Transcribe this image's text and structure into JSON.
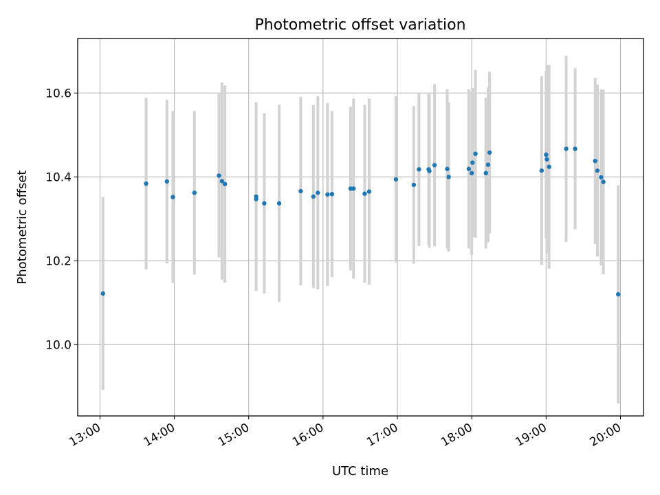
{
  "chart_data": {
    "type": "scatter",
    "title": "Photometric offset variation",
    "xlabel": "UTC time",
    "ylabel": "Photometric offset",
    "x_unit": "hours UTC",
    "xlim": [
      12.7,
      20.31
    ],
    "ylim": [
      9.83,
      10.73
    ],
    "xticks": [
      13,
      14,
      15,
      16,
      17,
      18,
      19,
      20
    ],
    "xtick_labels": [
      "13:00",
      "14:00",
      "15:00",
      "16:00",
      "17:00",
      "18:00",
      "19:00",
      "20:00"
    ],
    "yticks": [
      10.0,
      10.2,
      10.4,
      10.6
    ],
    "ytick_labels": [
      "10.0",
      "10.2",
      "10.4",
      "10.6"
    ],
    "grid": true,
    "marker_color": "#1f77b4",
    "errorbar_color": "#d3d3d3",
    "series": [
      {
        "name": "offset",
        "x": [
          13.04,
          13.62,
          13.9,
          13.98,
          14.27,
          14.6,
          14.64,
          14.68,
          15.1,
          15.1,
          15.21,
          15.41,
          15.7,
          15.87,
          15.93,
          16.06,
          16.12,
          16.37,
          16.41,
          16.56,
          16.62,
          16.98,
          17.22,
          17.29,
          17.42,
          17.43,
          17.5,
          17.67,
          17.69,
          17.96,
          18.0,
          18.01,
          18.05,
          18.19,
          18.22,
          18.24,
          18.94,
          19.0,
          19.01,
          19.04,
          19.27,
          19.39,
          19.66,
          19.69,
          19.74,
          19.77,
          19.97
        ],
        "y": [
          10.122,
          10.384,
          10.389,
          10.352,
          10.362,
          10.403,
          10.39,
          10.383,
          10.353,
          10.347,
          10.337,
          10.337,
          10.366,
          10.353,
          10.362,
          10.358,
          10.359,
          10.372,
          10.372,
          10.36,
          10.365,
          10.394,
          10.381,
          10.418,
          10.418,
          10.414,
          10.428,
          10.419,
          10.4,
          10.419,
          10.409,
          10.434,
          10.455,
          10.409,
          10.429,
          10.458,
          10.415,
          10.453,
          10.442,
          10.424,
          10.467,
          10.467,
          10.438,
          10.415,
          10.399,
          10.388,
          10.12
        ],
        "yerr": [
          0.23,
          0.205,
          0.195,
          0.205,
          0.195,
          0.195,
          0.235,
          0.235,
          0.225,
          0.215,
          0.215,
          0.235,
          0.225,
          0.218,
          0.23,
          0.218,
          0.198,
          0.195,
          0.215,
          0.212,
          0.222,
          0.198,
          0.188,
          0.183,
          0.18,
          0.183,
          0.193,
          0.19,
          0.178,
          0.19,
          0.195,
          0.178,
          0.2,
          0.18,
          0.185,
          0.193,
          0.225,
          0.2,
          0.225,
          0.243,
          0.222,
          0.192,
          0.198,
          0.205,
          0.21,
          0.22,
          0.26
        ]
      }
    ]
  }
}
